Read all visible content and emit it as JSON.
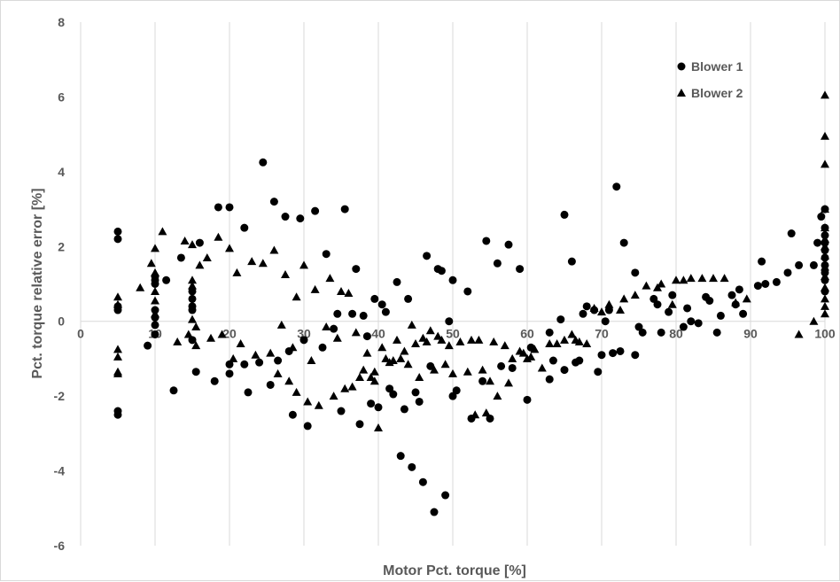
{
  "chart_data": {
    "type": "scatter",
    "title": "",
    "xlabel": "Motor Pct. torque [%]",
    "ylabel": "Pct. torque relative error [%]",
    "xlim": [
      0,
      100
    ],
    "ylim": [
      -6,
      8
    ],
    "x_ticks": [
      "0",
      "10",
      "20",
      "30",
      "40",
      "50",
      "60",
      "70",
      "80",
      "90",
      "100"
    ],
    "y_ticks": [
      "-6",
      "-4",
      "-2",
      "0",
      "2",
      "4",
      "6",
      "8"
    ],
    "grid": "vertical",
    "legend_position": "top-right",
    "marker_color": "#000000",
    "grid_color": "#d9d9d9",
    "series": [
      {
        "name": "Blower 1",
        "marker": "circle",
        "points": [
          [
            5,
            2.4
          ],
          [
            5,
            2.2
          ],
          [
            5,
            0.4
          ],
          [
            5,
            0.3
          ],
          [
            5,
            -2.4
          ],
          [
            5,
            -2.5
          ],
          [
            9,
            -0.65
          ],
          [
            10,
            1.2
          ],
          [
            10,
            1.1
          ],
          [
            10,
            1.0
          ],
          [
            10,
            0.3
          ],
          [
            10,
            0.1
          ],
          [
            10,
            -0.1
          ],
          [
            10,
            -0.35
          ],
          [
            11.5,
            1.1
          ],
          [
            12.5,
            -1.85
          ],
          [
            13.5,
            1.7
          ],
          [
            15,
            0.8
          ],
          [
            15,
            0.6
          ],
          [
            15,
            0.4
          ],
          [
            15,
            0.3
          ],
          [
            15,
            -0.5
          ],
          [
            15.5,
            -1.35
          ],
          [
            16,
            2.1
          ],
          [
            18,
            -1.6
          ],
          [
            18.5,
            3.05
          ],
          [
            20,
            3.05
          ],
          [
            20,
            -1.15
          ],
          [
            20,
            -1.4
          ],
          [
            22,
            2.5
          ],
          [
            22,
            -1.15
          ],
          [
            22.5,
            -1.9
          ],
          [
            24,
            -1.1
          ],
          [
            24.5,
            4.25
          ],
          [
            25.5,
            -1.7
          ],
          [
            26,
            3.2
          ],
          [
            26.5,
            -1.05
          ],
          [
            27.5,
            2.8
          ],
          [
            28,
            -0.8
          ],
          [
            28.5,
            -2.5
          ],
          [
            29.5,
            2.75
          ],
          [
            30,
            -0.5
          ],
          [
            30.5,
            -2.8
          ],
          [
            31.5,
            2.95
          ],
          [
            32.5,
            -0.7
          ],
          [
            33,
            1.8
          ],
          [
            34,
            -0.2
          ],
          [
            34.5,
            0.2
          ],
          [
            35,
            -2.4
          ],
          [
            35.5,
            3.0
          ],
          [
            36.5,
            0.2
          ],
          [
            37,
            1.4
          ],
          [
            37.5,
            -2.75
          ],
          [
            38,
            0.15
          ],
          [
            38.5,
            -0.4
          ],
          [
            39,
            -2.2
          ],
          [
            39.5,
            0.6
          ],
          [
            40,
            -2.3
          ],
          [
            40.5,
            0.45
          ],
          [
            41,
            0.25
          ],
          [
            41.5,
            -1.8
          ],
          [
            42,
            -1.95
          ],
          [
            42.5,
            1.05
          ],
          [
            43,
            -3.6
          ],
          [
            43.5,
            -2.35
          ],
          [
            44,
            0.6
          ],
          [
            44.5,
            -3.9
          ],
          [
            45,
            -1.9
          ],
          [
            45.5,
            -2.15
          ],
          [
            46,
            -4.3
          ],
          [
            46.5,
            1.75
          ],
          [
            47,
            -1.2
          ],
          [
            47.5,
            -5.1
          ],
          [
            48,
            1.4
          ],
          [
            48.5,
            1.35
          ],
          [
            49,
            -4.65
          ],
          [
            49.5,
            0.0
          ],
          [
            50,
            1.1
          ],
          [
            50,
            -2.0
          ],
          [
            50.5,
            -1.85
          ],
          [
            52,
            0.8
          ],
          [
            52.5,
            -2.6
          ],
          [
            54,
            -1.6
          ],
          [
            54.5,
            2.15
          ],
          [
            55,
            -2.6
          ],
          [
            56,
            1.55
          ],
          [
            56.5,
            -1.2
          ],
          [
            57.5,
            2.05
          ],
          [
            58,
            -1.25
          ],
          [
            59,
            1.4
          ],
          [
            60,
            -2.1
          ],
          [
            60.5,
            -0.7
          ],
          [
            63,
            -1.55
          ],
          [
            63,
            -0.3
          ],
          [
            63.5,
            -1.05
          ],
          [
            64.5,
            0.05
          ],
          [
            65,
            2.85
          ],
          [
            65,
            -1.3
          ],
          [
            66,
            1.6
          ],
          [
            66.5,
            -1.1
          ],
          [
            67,
            -1.05
          ],
          [
            67.5,
            0.2
          ],
          [
            68,
            0.4
          ],
          [
            69,
            0.3
          ],
          [
            69.5,
            -1.35
          ],
          [
            70,
            -0.9
          ],
          [
            70.5,
            0.0
          ],
          [
            71,
            0.3
          ],
          [
            71.5,
            -0.85
          ],
          [
            72,
            3.6
          ],
          [
            72.5,
            -0.8
          ],
          [
            73,
            2.1
          ],
          [
            74.5,
            -0.9
          ],
          [
            74.5,
            1.3
          ],
          [
            75,
            -0.15
          ],
          [
            75.5,
            -0.3
          ],
          [
            77,
            0.6
          ],
          [
            77.5,
            0.45
          ],
          [
            78,
            -0.3
          ],
          [
            79,
            0.25
          ],
          [
            79.5,
            0.7
          ],
          [
            81,
            -0.15
          ],
          [
            81.5,
            0.35
          ],
          [
            82,
            0.0
          ],
          [
            83,
            -0.05
          ],
          [
            84,
            0.65
          ],
          [
            84.5,
            0.55
          ],
          [
            85.5,
            -0.3
          ],
          [
            86,
            0.15
          ],
          [
            87.5,
            0.7
          ],
          [
            88,
            0.45
          ],
          [
            88.5,
            0.85
          ],
          [
            89,
            0.2
          ],
          [
            91,
            0.95
          ],
          [
            91.5,
            1.6
          ],
          [
            92,
            1.0
          ],
          [
            93.5,
            1.05
          ],
          [
            95,
            1.3
          ],
          [
            95.5,
            2.35
          ],
          [
            96.5,
            1.5
          ],
          [
            98.5,
            1.5
          ],
          [
            99,
            2.1
          ],
          [
            99.5,
            2.8
          ],
          [
            100,
            3.0
          ],
          [
            100,
            2.5
          ],
          [
            100,
            2.3
          ],
          [
            100,
            2.1
          ],
          [
            100,
            1.9
          ],
          [
            100,
            1.7
          ],
          [
            100,
            1.5
          ],
          [
            100,
            1.3
          ],
          [
            100,
            1.1
          ],
          [
            100,
            0.8
          ]
        ]
      },
      {
        "name": "Blower 2",
        "marker": "triangle",
        "points": [
          [
            5,
            0.65
          ],
          [
            5,
            0.45
          ],
          [
            5,
            -0.75
          ],
          [
            5,
            -0.95
          ],
          [
            5,
            -1.35
          ],
          [
            5,
            -1.4
          ],
          [
            8,
            0.9
          ],
          [
            9.5,
            1.55
          ],
          [
            10,
            1.95
          ],
          [
            10,
            1.3
          ],
          [
            10,
            0.8
          ],
          [
            10,
            0.55
          ],
          [
            10,
            0.2
          ],
          [
            11,
            2.4
          ],
          [
            13,
            -0.55
          ],
          [
            14,
            2.15
          ],
          [
            14.5,
            -0.35
          ],
          [
            15,
            2.05
          ],
          [
            15,
            1.1
          ],
          [
            15,
            0.95
          ],
          [
            15,
            0.05
          ],
          [
            15.5,
            -0.15
          ],
          [
            15.5,
            -0.65
          ],
          [
            16,
            1.5
          ],
          [
            17,
            1.7
          ],
          [
            17.5,
            -0.45
          ],
          [
            18.5,
            2.25
          ],
          [
            19,
            -0.35
          ],
          [
            20,
            1.95
          ],
          [
            20.5,
            -1.0
          ],
          [
            21,
            1.3
          ],
          [
            21.5,
            -0.6
          ],
          [
            23,
            1.6
          ],
          [
            23.5,
            -0.9
          ],
          [
            24.5,
            1.55
          ],
          [
            25.5,
            -0.85
          ],
          [
            26,
            1.9
          ],
          [
            26.5,
            -1.4
          ],
          [
            27,
            -0.1
          ],
          [
            27.5,
            1.25
          ],
          [
            28,
            -1.6
          ],
          [
            28.5,
            -0.7
          ],
          [
            29,
            0.65
          ],
          [
            29,
            -1.9
          ],
          [
            30,
            1.5
          ],
          [
            30.5,
            -2.15
          ],
          [
            31,
            -1.05
          ],
          [
            31.5,
            0.85
          ],
          [
            32,
            -2.25
          ],
          [
            33,
            -0.15
          ],
          [
            33.5,
            1.15
          ],
          [
            34,
            -2.0
          ],
          [
            34.5,
            -0.45
          ],
          [
            35,
            0.8
          ],
          [
            35.5,
            -1.8
          ],
          [
            36,
            0.75
          ],
          [
            36.5,
            -1.75
          ],
          [
            37,
            -0.3
          ],
          [
            37.5,
            -1.5
          ],
          [
            38,
            -1.3
          ],
          [
            38.5,
            -0.85
          ],
          [
            39,
            -1.5
          ],
          [
            39.5,
            -1.6
          ],
          [
            39.5,
            -1.35
          ],
          [
            40,
            -2.85
          ],
          [
            40.5,
            -0.7
          ],
          [
            41,
            -1.0
          ],
          [
            41.5,
            -1.1
          ],
          [
            42,
            -1.05
          ],
          [
            42.5,
            -0.5
          ],
          [
            43,
            -1.0
          ],
          [
            43.5,
            -0.8
          ],
          [
            44,
            -1.15
          ],
          [
            44.5,
            -0.1
          ],
          [
            45,
            -0.6
          ],
          [
            45.5,
            -1.5
          ],
          [
            46,
            -0.45
          ],
          [
            46.5,
            -0.55
          ],
          [
            47,
            -0.25
          ],
          [
            47.5,
            -1.3
          ],
          [
            48,
            -0.4
          ],
          [
            48.5,
            -0.5
          ],
          [
            49,
            -1.15
          ],
          [
            49.5,
            -0.65
          ],
          [
            50,
            -1.4
          ],
          [
            51,
            -0.55
          ],
          [
            52,
            -1.35
          ],
          [
            52.5,
            -0.5
          ],
          [
            53,
            -2.5
          ],
          [
            53.5,
            -0.5
          ],
          [
            54,
            -1.3
          ],
          [
            54.5,
            -2.45
          ],
          [
            55,
            -1.6
          ],
          [
            55.5,
            -0.55
          ],
          [
            56,
            -2.0
          ],
          [
            57,
            -0.65
          ],
          [
            57.5,
            -1.65
          ],
          [
            58,
            -1.0
          ],
          [
            59,
            -0.8
          ],
          [
            59.5,
            -0.85
          ],
          [
            60,
            -1.0
          ],
          [
            60.5,
            -0.95
          ],
          [
            61,
            -0.75
          ],
          [
            62,
            -1.25
          ],
          [
            63,
            -0.6
          ],
          [
            64,
            -0.6
          ],
          [
            65,
            -0.5
          ],
          [
            66,
            -0.35
          ],
          [
            66.5,
            -0.5
          ],
          [
            67,
            -0.55
          ],
          [
            68,
            -0.6
          ],
          [
            69,
            0.35
          ],
          [
            70,
            0.25
          ],
          [
            71,
            0.45
          ],
          [
            72.5,
            0.3
          ],
          [
            73,
            0.6
          ],
          [
            74.5,
            0.7
          ],
          [
            76,
            0.95
          ],
          [
            77.5,
            0.9
          ],
          [
            78,
            1.0
          ],
          [
            79.5,
            0.45
          ],
          [
            80,
            1.1
          ],
          [
            81,
            1.1
          ],
          [
            82,
            1.15
          ],
          [
            83.5,
            1.15
          ],
          [
            85,
            1.15
          ],
          [
            86.5,
            1.15
          ],
          [
            88,
            0.5
          ],
          [
            89.5,
            0.6
          ],
          [
            96.5,
            -0.35
          ],
          [
            98.5,
            0.0
          ],
          [
            100,
            6.05
          ],
          [
            100,
            4.95
          ],
          [
            100,
            4.2
          ],
          [
            100,
            3.0
          ],
          [
            100,
            2.5
          ],
          [
            100,
            2.2
          ],
          [
            100,
            2.0
          ],
          [
            100,
            1.75
          ],
          [
            100,
            1.45
          ],
          [
            100,
            1.2
          ],
          [
            100,
            0.9
          ],
          [
            100,
            0.6
          ],
          [
            100,
            0.4
          ],
          [
            100,
            0.2
          ]
        ]
      }
    ]
  }
}
